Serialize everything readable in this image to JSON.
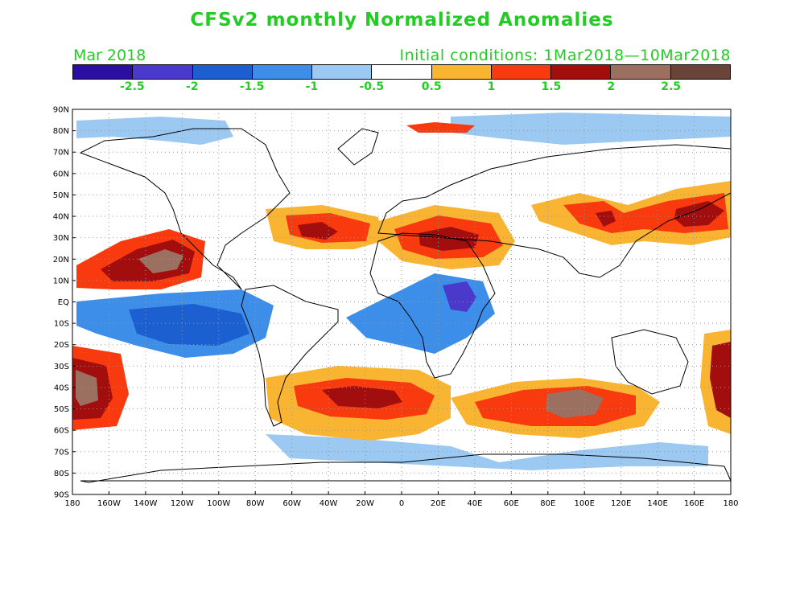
{
  "header": {
    "title": "CFSv2 monthly Normalized Anomalies",
    "month": "Mar 2018",
    "initial_conditions": "Initial conditions: 1Mar2018—10Mar2018",
    "text_color": "#22cc22"
  },
  "colorbar": {
    "colors": [
      "#2a0fa0",
      "#4b39cc",
      "#1c5fd0",
      "#3d8ee8",
      "#9cc9f2",
      "#ffffff",
      "#f9b431",
      "#f93a0f",
      "#a20d0d",
      "#9b7060",
      "#6a4438"
    ],
    "labels": [
      "-2.5",
      "-2",
      "-1.5",
      "-1",
      "-0.5",
      "0.5",
      "1",
      "1.5",
      "2",
      "2.5"
    ]
  },
  "map": {
    "lat_labels": [
      "90N",
      "80N",
      "70N",
      "60N",
      "50N",
      "40N",
      "30N",
      "20N",
      "10N",
      "EQ",
      "10S",
      "20S",
      "30S",
      "40S",
      "50S",
      "60S",
      "70S",
      "80S",
      "90S"
    ],
    "lon_labels": [
      "180",
      "160W",
      "140W",
      "120W",
      "100W",
      "80W",
      "60W",
      "40W",
      "20W",
      "0",
      "20E",
      "40E",
      "60E",
      "80E",
      "100E",
      "120E",
      "140E",
      "160E",
      "180"
    ],
    "anomaly_regions": [
      {
        "name": "north-pacific-cool",
        "level": 4
      },
      {
        "name": "north-pacific-subtropical-warm",
        "level": 7
      },
      {
        "name": "north-pacific-subtropical-strong",
        "level": 8
      },
      {
        "name": "north-pacific-subtropical-extreme",
        "level": 9
      },
      {
        "name": "equatorial-pacific-cool",
        "level": 3
      },
      {
        "name": "equatorial-pacific-cool-core",
        "level": 2
      },
      {
        "name": "south-pacific-west-warm",
        "level": 7
      },
      {
        "name": "south-pacific-west-strong",
        "level": 8
      },
      {
        "name": "south-pacific-west-extreme",
        "level": 9
      },
      {
        "name": "north-atlantic-warm",
        "level": 6
      },
      {
        "name": "north-atlantic-strong",
        "level": 7
      },
      {
        "name": "north-atlantic-extreme",
        "level": 8
      },
      {
        "name": "sahara-arabia-warm",
        "level": 6
      },
      {
        "name": "sahara-arabia-strong",
        "level": 7
      },
      {
        "name": "sahara-arabia-extreme",
        "level": 8
      },
      {
        "name": "east-africa-cool",
        "level": 3
      },
      {
        "name": "east-africa-cool-core",
        "level": 1
      },
      {
        "name": "south-atlantic-warm",
        "level": 6
      },
      {
        "name": "south-atlantic-strong",
        "level": 7
      },
      {
        "name": "south-atlantic-extreme",
        "level": 8
      },
      {
        "name": "southern-indian-warm",
        "level": 6
      },
      {
        "name": "southern-indian-strong",
        "level": 7
      },
      {
        "name": "southern-indian-extreme",
        "level": 9
      },
      {
        "name": "asia-north-pacific-warm",
        "level": 6
      },
      {
        "name": "asia-north-pacific-strong",
        "level": 7
      },
      {
        "name": "asia-north-pacific-extreme",
        "level": 8
      },
      {
        "name": "arctic-cool",
        "level": 4
      },
      {
        "name": "arctic-warm",
        "level": 7
      },
      {
        "name": "southern-ocean-cool",
        "level": 4
      },
      {
        "name": "tasman-warm",
        "level": 6
      },
      {
        "name": "tasman-strong",
        "level": 8
      }
    ]
  }
}
